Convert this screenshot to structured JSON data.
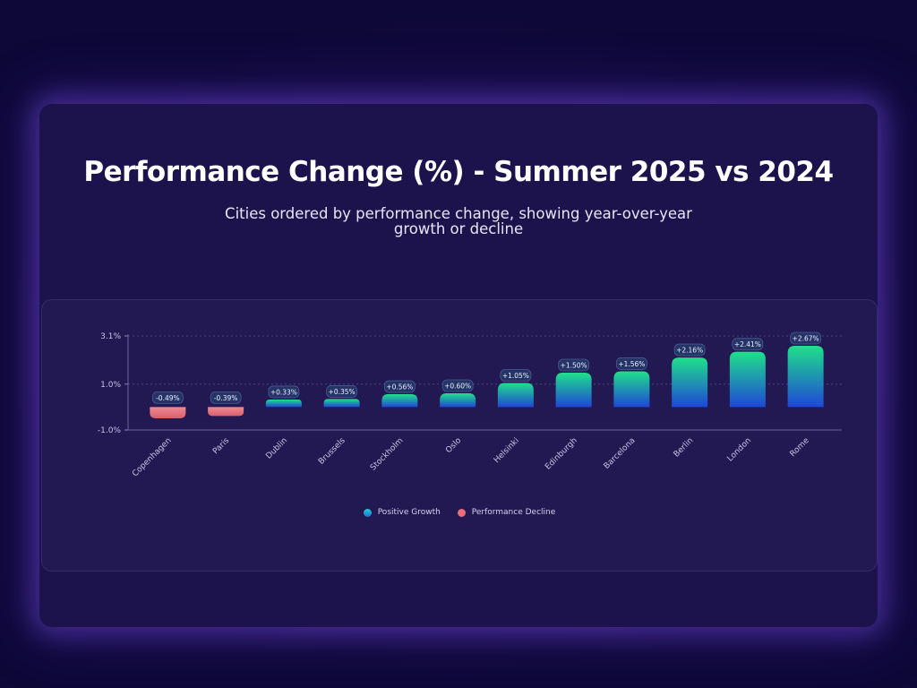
{
  "header": {
    "title": "Performance Change (%) - Summer 2025 vs 2024",
    "subtitle_line1": "Cities ordered by performance change, showing year-over-year",
    "subtitle_line2": "growth or decline"
  },
  "legend": {
    "positive": "Positive Growth",
    "negative": "Performance Decline"
  },
  "colors": {
    "positive_top": "#1fe08a",
    "positive_bottom": "#1f47d6",
    "negative": "#e9707a",
    "label_bg": "#243467",
    "label_border": "#4a5a92"
  },
  "chart_data": {
    "type": "bar",
    "title": "Performance Change (%) - Summer 2025 vs 2024",
    "subtitle": "Cities ordered by performance change, showing year-over-year growth or decline",
    "categories": [
      "Copenhagen",
      "Paris",
      "Dublin",
      "Brussels",
      "Stockholm",
      "Oslo",
      "Helsinki",
      "Edinburgh",
      "Barcelona",
      "Berlin",
      "London",
      "Rome"
    ],
    "values": [
      -0.49,
      -0.39,
      0.33,
      0.35,
      0.56,
      0.6,
      1.05,
      1.5,
      1.56,
      2.16,
      2.41,
      2.67
    ],
    "value_labels": [
      "-0.49%",
      "-0.39%",
      "+0.33%",
      "+0.35%",
      "+0.56%",
      "+0.60%",
      "+1.05%",
      "+1.50%",
      "+1.56%",
      "+2.16%",
      "+2.41%",
      "+2.67%"
    ],
    "ylim": [
      -1.0,
      3.1
    ],
    "yticks": [
      3.1,
      1.0,
      -1.0
    ],
    "ytick_labels": [
      "3.1%",
      "1.0%",
      "-1.0%"
    ],
    "grid": true,
    "legend_position": "bottom"
  }
}
